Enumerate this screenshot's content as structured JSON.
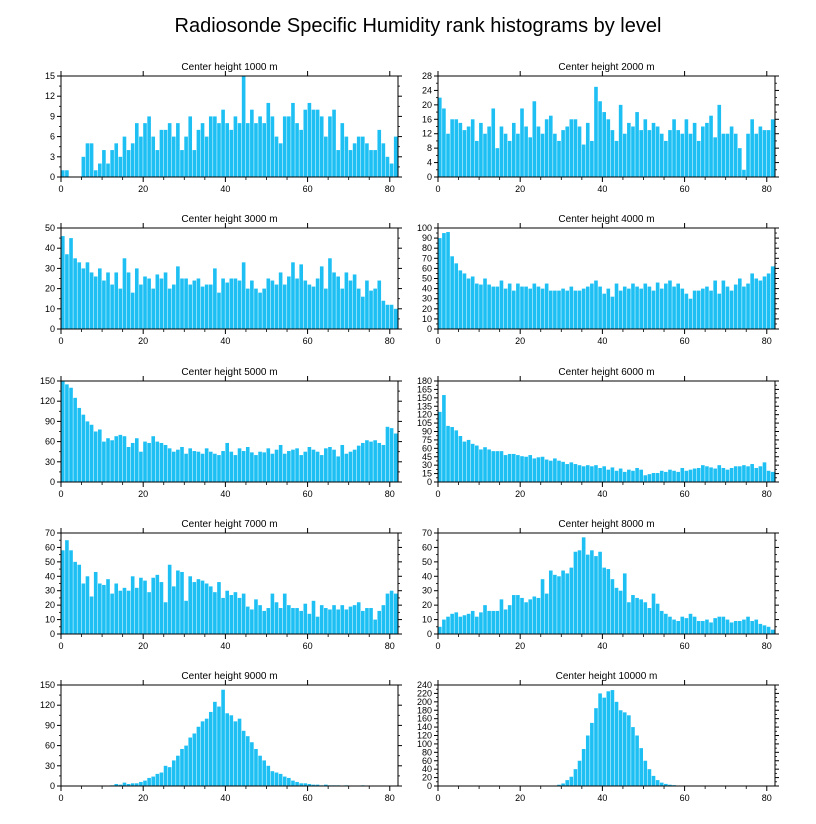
{
  "figure": {
    "title": "Radiosonde Specific Humidity rank histograms by level",
    "bar_color": "#1ec0f4"
  },
  "chart_data": [
    {
      "type": "bar",
      "title": "Center height 1000 m",
      "xlim": [
        0,
        82
      ],
      "ylim": [
        0,
        15
      ],
      "xticks": [
        0,
        20,
        40,
        60,
        80
      ],
      "yticks": [
        0,
        3,
        6,
        9,
        12,
        15
      ],
      "values": [
        1,
        1,
        0,
        0,
        0,
        3,
        5,
        5,
        1,
        2,
        4,
        2,
        4,
        5,
        3,
        6,
        4,
        5,
        8,
        6,
        8,
        9,
        6,
        4,
        7,
        7,
        8,
        6,
        8,
        4,
        6,
        9,
        4,
        7,
        8,
        6,
        9,
        9,
        8,
        10,
        8,
        7,
        9,
        8,
        15,
        8,
        10,
        8,
        9,
        8,
        11,
        9,
        6,
        5,
        9,
        9,
        11,
        8,
        7,
        10,
        11,
        10,
        10,
        9,
        6,
        9,
        10,
        4,
        8,
        6,
        4,
        5,
        6,
        6,
        5,
        4,
        4,
        7,
        5,
        3,
        2,
        6
      ]
    },
    {
      "type": "bar",
      "title": "Center height 2000 m",
      "xlim": [
        0,
        82
      ],
      "ylim": [
        0,
        28
      ],
      "xticks": [
        0,
        20,
        40,
        60,
        80
      ],
      "yticks": [
        0,
        4,
        8,
        12,
        16,
        20,
        24,
        28
      ],
      "values": [
        22,
        19,
        12,
        16,
        16,
        15,
        13,
        14,
        16,
        10,
        15,
        12,
        14,
        19,
        8,
        14,
        12,
        10,
        15,
        12,
        19,
        14,
        11,
        21,
        14,
        12,
        16,
        17,
        12,
        10,
        13,
        14,
        16,
        16,
        14,
        9,
        15,
        10,
        25,
        21,
        18,
        16,
        13,
        10,
        20,
        12,
        15,
        14,
        18,
        13,
        16,
        13,
        15,
        14,
        12,
        10,
        13,
        16,
        13,
        12,
        16,
        12,
        15,
        10,
        14,
        15,
        17,
        11,
        20,
        12,
        12,
        14,
        12,
        8,
        2,
        12,
        16,
        12,
        14,
        13,
        13,
        16
      ]
    },
    {
      "type": "bar",
      "title": "Center height 3000 m",
      "xlim": [
        0,
        82
      ],
      "ylim": [
        0,
        50
      ],
      "xticks": [
        0,
        20,
        40,
        60,
        80
      ],
      "yticks": [
        0,
        10,
        20,
        30,
        40,
        50
      ],
      "values": [
        46,
        37,
        45,
        35,
        33,
        30,
        33,
        28,
        26,
        30,
        24,
        28,
        22,
        28,
        20,
        35,
        28,
        18,
        30,
        22,
        26,
        25,
        20,
        27,
        25,
        28,
        20,
        22,
        31,
        25,
        25,
        22,
        24,
        25,
        21,
        22,
        22,
        30,
        18,
        25,
        23,
        25,
        25,
        24,
        33,
        20,
        24,
        20,
        18,
        20,
        25,
        24,
        22,
        28,
        22,
        26,
        33,
        25,
        32,
        24,
        22,
        21,
        25,
        31,
        20,
        35,
        28,
        26,
        20,
        28,
        24,
        27,
        20,
        16,
        24,
        19,
        20,
        24,
        14,
        12,
        12,
        10
      ]
    },
    {
      "type": "bar",
      "title": "Center height 4000 m",
      "xlim": [
        0,
        82
      ],
      "ylim": [
        0,
        100
      ],
      "xticks": [
        0,
        20,
        40,
        60,
        80
      ],
      "yticks": [
        0,
        10,
        20,
        30,
        40,
        50,
        60,
        70,
        80,
        90,
        100
      ],
      "values": [
        90,
        95,
        96,
        72,
        65,
        58,
        55,
        50,
        52,
        45,
        44,
        50,
        44,
        42,
        42,
        48,
        40,
        45,
        38,
        45,
        42,
        42,
        40,
        45,
        42,
        40,
        45,
        38,
        38,
        38,
        40,
        38,
        42,
        38,
        38,
        40,
        42,
        45,
        48,
        42,
        35,
        40,
        32,
        45,
        38,
        42,
        40,
        45,
        42,
        40,
        45,
        42,
        38,
        46,
        40,
        45,
        48,
        42,
        45,
        40,
        35,
        30,
        38,
        38,
        40,
        42,
        38,
        48,
        35,
        48,
        42,
        38,
        44,
        50,
        42,
        45,
        55,
        50,
        48,
        52,
        55,
        62
      ]
    },
    {
      "type": "bar",
      "title": "Center height 5000 m",
      "xlim": [
        0,
        82
      ],
      "ylim": [
        0,
        150
      ],
      "xticks": [
        0,
        20,
        40,
        60,
        80
      ],
      "yticks": [
        0,
        30,
        60,
        90,
        120,
        150
      ],
      "values": [
        150,
        145,
        140,
        125,
        110,
        100,
        90,
        85,
        75,
        78,
        60,
        65,
        62,
        68,
        70,
        68,
        52,
        58,
        65,
        45,
        60,
        58,
        68,
        60,
        58,
        55,
        50,
        45,
        48,
        52,
        42,
        50,
        46,
        45,
        42,
        50,
        45,
        42,
        40,
        46,
        58,
        45,
        40,
        50,
        46,
        52,
        44,
        40,
        45,
        44,
        50,
        42,
        48,
        55,
        42,
        46,
        48,
        50,
        40,
        45,
        52,
        48,
        45,
        40,
        50,
        52,
        48,
        38,
        55,
        42,
        45,
        48,
        54,
        58,
        62,
        60,
        62,
        58,
        55,
        82,
        80,
        72
      ]
    },
    {
      "type": "bar",
      "title": "Center height 6000 m",
      "xlim": [
        0,
        82
      ],
      "ylim": [
        0,
        180
      ],
      "xticks": [
        0,
        20,
        40,
        60,
        80
      ],
      "yticks": [
        0,
        15,
        30,
        45,
        60,
        75,
        90,
        105,
        120,
        135,
        150,
        165,
        180
      ],
      "values": [
        125,
        155,
        100,
        98,
        92,
        82,
        72,
        75,
        68,
        65,
        58,
        62,
        58,
        55,
        55,
        55,
        48,
        50,
        50,
        48,
        46,
        45,
        48,
        42,
        44,
        45,
        40,
        38,
        42,
        38,
        36,
        32,
        35,
        32,
        30,
        28,
        30,
        28,
        30,
        25,
        28,
        22,
        26,
        20,
        24,
        18,
        22,
        20,
        25,
        22,
        12,
        14,
        16,
        16,
        20,
        18,
        22,
        20,
        18,
        25,
        20,
        22,
        24,
        25,
        30,
        28,
        26,
        24,
        30,
        25,
        22,
        25,
        28,
        28,
        30,
        28,
        32,
        25,
        28,
        35,
        20,
        18
      ]
    },
    {
      "type": "bar",
      "title": "Center height 7000 m",
      "xlim": [
        0,
        82
      ],
      "ylim": [
        0,
        70
      ],
      "xticks": [
        0,
        20,
        40,
        60,
        80
      ],
      "yticks": [
        0,
        10,
        20,
        30,
        40,
        50,
        60,
        70
      ],
      "values": [
        58,
        65,
        58,
        50,
        48,
        35,
        40,
        26,
        43,
        35,
        34,
        38,
        28,
        35,
        30,
        32,
        30,
        40,
        32,
        39,
        37,
        29,
        39,
        41,
        36,
        22,
        48,
        33,
        44,
        43,
        23,
        40,
        36,
        38,
        37,
        35,
        33,
        29,
        36,
        25,
        30,
        27,
        29,
        25,
        28,
        19,
        17,
        24,
        20,
        16,
        18,
        28,
        22,
        18,
        28,
        20,
        18,
        18,
        16,
        21,
        14,
        23,
        12,
        20,
        18,
        17,
        20,
        17,
        20,
        17,
        19,
        20,
        22,
        16,
        18,
        18,
        10,
        16,
        20,
        28,
        30,
        28
      ]
    },
    {
      "type": "bar",
      "title": "Center height 8000 m",
      "xlim": [
        0,
        82
      ],
      "ylim": [
        0,
        70
      ],
      "xticks": [
        0,
        20,
        40,
        60,
        80
      ],
      "yticks": [
        0,
        10,
        20,
        30,
        40,
        50,
        60,
        70
      ],
      "values": [
        5,
        10,
        12,
        14,
        15,
        12,
        13,
        14,
        16,
        12,
        15,
        20,
        16,
        16,
        16,
        24,
        17,
        20,
        27,
        27,
        25,
        22,
        24,
        26,
        25,
        38,
        28,
        44,
        41,
        40,
        44,
        42,
        46,
        57,
        58,
        67,
        55,
        58,
        54,
        57,
        46,
        45,
        38,
        32,
        30,
        42,
        22,
        27,
        25,
        24,
        22,
        18,
        28,
        21,
        16,
        14,
        12,
        10,
        9,
        12,
        11,
        14,
        12,
        9,
        9,
        10,
        8,
        11,
        12,
        12,
        10,
        8,
        9,
        9,
        10,
        12,
        9,
        10,
        7,
        6,
        5,
        3
      ]
    },
    {
      "type": "bar",
      "title": "Center height 9000 m",
      "xlim": [
        0,
        82
      ],
      "ylim": [
        0,
        150
      ],
      "xticks": [
        0,
        20,
        40,
        60,
        80
      ],
      "yticks": [
        0,
        30,
        60,
        90,
        120,
        150
      ],
      "values": [
        0,
        0,
        0,
        0,
        0,
        0,
        0,
        0,
        0,
        0,
        0,
        0,
        1,
        3,
        2,
        5,
        3,
        4,
        4,
        6,
        8,
        12,
        14,
        18,
        20,
        30,
        28,
        38,
        45,
        55,
        60,
        72,
        78,
        88,
        96,
        100,
        110,
        125,
        118,
        143,
        108,
        105,
        96,
        100,
        82,
        74,
        65,
        55,
        45,
        38,
        30,
        22,
        20,
        18,
        14,
        12,
        8,
        6,
        4,
        4,
        3,
        2,
        2,
        1,
        2,
        1,
        1,
        1,
        0,
        1,
        0,
        0,
        0,
        1,
        0,
        0,
        0,
        0,
        0,
        0,
        0,
        0
      ]
    },
    {
      "type": "bar",
      "title": "Center height 10000 m",
      "xlim": [
        0,
        82
      ],
      "ylim": [
        0,
        240
      ],
      "xticks": [
        0,
        20,
        40,
        60,
        80
      ],
      "yticks": [
        0,
        20,
        40,
        60,
        80,
        100,
        120,
        140,
        160,
        180,
        200,
        220,
        240
      ],
      "values": [
        0,
        0,
        0,
        0,
        0,
        0,
        0,
        0,
        0,
        0,
        0,
        0,
        0,
        0,
        0,
        0,
        0,
        0,
        0,
        0,
        0,
        0,
        0,
        0,
        0,
        0,
        0,
        0,
        1,
        3,
        6,
        14,
        22,
        40,
        60,
        88,
        120,
        150,
        185,
        220,
        210,
        225,
        228,
        200,
        180,
        175,
        168,
        140,
        120,
        90,
        60,
        40,
        24,
        14,
        8,
        5,
        3,
        2,
        1,
        1,
        0,
        1,
        0,
        0,
        0,
        0,
        0,
        0,
        0,
        0,
        0,
        0,
        0,
        0,
        0,
        0,
        0,
        0,
        0,
        0,
        0,
        0
      ]
    }
  ]
}
